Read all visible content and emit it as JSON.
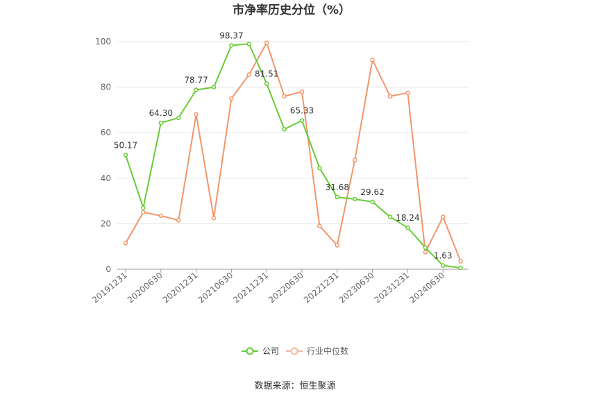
{
  "chart_data": {
    "type": "line",
    "title": "市净率历史分位（%）",
    "categories": [
      "20191231",
      "20200331",
      "20200630",
      "20200930",
      "20201231",
      "20210331",
      "20210630",
      "20210930",
      "20211231",
      "20220331",
      "20220630",
      "20220930",
      "20221231",
      "20230331",
      "20230630",
      "20230930",
      "20231231",
      "20240331",
      "20240630",
      "20240930"
    ],
    "x_tick_labels": [
      "20191231",
      "20200630",
      "20201231",
      "20210630",
      "20211231",
      "20220630",
      "20221231",
      "20230630",
      "20231231",
      "20240630"
    ],
    "series": [
      {
        "name": "公司",
        "color": "#66cc33",
        "values": [
          50.17,
          27.0,
          64.3,
          66.5,
          78.77,
          80.0,
          98.37,
          99.0,
          81.51,
          61.5,
          65.33,
          44.5,
          31.68,
          30.8,
          29.62,
          23.0,
          18.24,
          9.5,
          1.63,
          0.6
        ],
        "labels": [
          {
            "index": 0,
            "text": "50.17"
          },
          {
            "index": 2,
            "text": "64.30"
          },
          {
            "index": 4,
            "text": "78.77"
          },
          {
            "index": 6,
            "text": "98.37"
          },
          {
            "index": 8,
            "text": "81.51"
          },
          {
            "index": 10,
            "text": "65.33"
          },
          {
            "index": 12,
            "text": "31.68"
          },
          {
            "index": 14,
            "text": "29.62"
          },
          {
            "index": 16,
            "text": "18.24"
          },
          {
            "index": 18,
            "text": "1.63"
          }
        ]
      },
      {
        "name": "行业中位数",
        "color": "#f2956a",
        "values": [
          11.5,
          25.0,
          23.5,
          21.5,
          68.0,
          22.5,
          75.0,
          85.5,
          99.5,
          76.0,
          78.0,
          19.0,
          10.5,
          48.0,
          92.0,
          76.0,
          77.5,
          7.5,
          23.0,
          3.5
        ]
      }
    ],
    "y_ticks": [
      0,
      20,
      40,
      60,
      80,
      100
    ],
    "ylim": [
      0,
      100
    ],
    "grid": true,
    "legend_position": "bottom-center",
    "source": "数据来源：恒生聚源"
  }
}
